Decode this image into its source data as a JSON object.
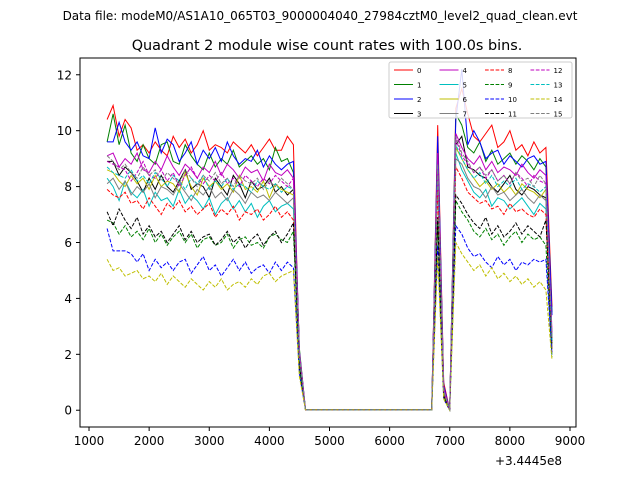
{
  "figure": {
    "suptitle": "Data file: modeM0/AS1A10_065T03_9000004040_27984cztM0_level2_quad_clean.evt"
  },
  "chart_data": {
    "type": "line",
    "title": "Quadrant 2 module wise count rates with 100.0s bins.",
    "xlabel": "",
    "ylabel": "",
    "x_offset_label": "+3.4445e8",
    "xlim": [
      850,
      9100
    ],
    "ylim": [
      -0.6,
      12.6
    ],
    "xticks": [
      1000,
      2000,
      3000,
      4000,
      5000,
      6000,
      7000,
      8000,
      9000
    ],
    "yticks": [
      0,
      2,
      4,
      6,
      8,
      10,
      12
    ],
    "legend_position": "upper-right",
    "legend_columns": 4,
    "grid": false,
    "time_bins": [
      1300,
      1400,
      1500,
      1600,
      1700,
      1800,
      1900,
      2000,
      2100,
      2200,
      2300,
      2400,
      2500,
      2600,
      2700,
      2800,
      2900,
      3000,
      3100,
      3200,
      3300,
      3400,
      3500,
      3600,
      3700,
      3800,
      3900,
      4000,
      4100,
      4200,
      4300,
      4400,
      4500,
      4600,
      6700,
      6800,
      6900,
      7000,
      7100,
      7200,
      7300,
      7400,
      7500,
      7600,
      7700,
      7800,
      7900,
      8000,
      8100,
      8200,
      8300,
      8400,
      8500,
      8600,
      8700
    ],
    "series": [
      {
        "name": "0",
        "color": "#ff0000",
        "dash": "solid",
        "values": [
          10.4,
          10.9,
          9.8,
          10.4,
          10.1,
          9.3,
          9.5,
          9.2,
          9.6,
          9.3,
          9.1,
          9.8,
          9.4,
          9.7,
          9.2,
          9.5,
          10.0,
          9.3,
          9.5,
          9.4,
          9.2,
          9.6,
          9.4,
          9.2,
          9.5,
          9.1,
          9.4,
          9.7,
          9.3,
          9.3,
          9.8,
          9.5,
          2.0,
          0.02,
          0.02,
          10.2,
          1.0,
          0.0,
          10.8,
          11.5,
          10.6,
          9.8,
          9.6,
          9.9,
          10.2,
          9.4,
          9.6,
          10.0,
          9.3,
          9.5,
          9.1,
          9.6,
          9.2,
          9.4,
          3.7
        ]
      },
      {
        "name": "1",
        "color": "#008000",
        "dash": "solid",
        "values": [
          9.6,
          10.6,
          9.5,
          10.2,
          9.2,
          8.9,
          9.5,
          9.0,
          8.8,
          9.5,
          9.6,
          8.9,
          8.8,
          9.5,
          9.1,
          8.8,
          8.6,
          9.2,
          8.7,
          9.0,
          8.8,
          9.3,
          8.7,
          8.9,
          9.1,
          8.8,
          9.0,
          8.6,
          9.4,
          8.9,
          9.0,
          8.5,
          2.2,
          0.02,
          0.02,
          9.6,
          0.8,
          0.0,
          10.6,
          10.2,
          9.4,
          9.2,
          9.6,
          8.9,
          9.3,
          8.8,
          9.0,
          9.2,
          8.8,
          9.1,
          8.9,
          8.6,
          9.0,
          8.7,
          3.5
        ]
      },
      {
        "name": "2",
        "color": "#0000ff",
        "dash": "solid",
        "values": [
          9.6,
          9.6,
          10.3,
          9.6,
          9.3,
          9.6,
          9.1,
          9.0,
          10.1,
          9.2,
          9.7,
          9.5,
          8.9,
          9.2,
          9.6,
          8.8,
          9.3,
          9.0,
          9.4,
          8.9,
          9.6,
          9.1,
          8.8,
          9.0,
          8.9,
          9.3,
          8.7,
          9.1,
          8.8,
          8.6,
          8.8,
          8.9,
          2.1,
          0.02,
          0.02,
          9.8,
          0.9,
          0.0,
          10.4,
          12.2,
          9.5,
          10.0,
          9.6,
          9.0,
          9.2,
          9.3,
          8.8,
          9.1,
          8.9,
          8.7,
          9.0,
          9.1,
          8.8,
          8.9,
          3.4
        ]
      },
      {
        "name": "3",
        "color": "#000000",
        "dash": "solid",
        "values": [
          8.9,
          8.9,
          8.4,
          8.7,
          8.5,
          8.2,
          7.8,
          8.3,
          7.9,
          8.4,
          8.0,
          7.8,
          8.2,
          8.6,
          7.9,
          8.1,
          8.0,
          7.6,
          8.3,
          8.0,
          7.7,
          8.4,
          8.1,
          7.6,
          8.2,
          7.9,
          8.0,
          8.3,
          7.8,
          8.0,
          7.7,
          7.9,
          1.9,
          0.02,
          0.02,
          8.8,
          0.7,
          0.0,
          9.5,
          9.8,
          8.7,
          8.6,
          8.4,
          8.3,
          8.0,
          7.8,
          8.1,
          8.4,
          7.9,
          7.7,
          8.0,
          7.9,
          7.7,
          7.6,
          2.5
        ]
      },
      {
        "name": "4",
        "color": "#bf00bf",
        "dash": "solid",
        "values": [
          9.1,
          9.2,
          8.7,
          9.0,
          8.8,
          9.2,
          8.6,
          8.5,
          8.9,
          8.6,
          9.1,
          8.7,
          8.4,
          8.8,
          8.6,
          8.3,
          8.7,
          8.5,
          8.9,
          8.4,
          8.8,
          8.6,
          8.3,
          8.7,
          8.5,
          8.6,
          8.2,
          8.8,
          8.5,
          8.4,
          8.6,
          8.3,
          2.1,
          0.02,
          0.02,
          9.2,
          0.8,
          0.0,
          9.9,
          9.4,
          9.0,
          8.8,
          9.1,
          8.6,
          8.9,
          8.5,
          8.7,
          8.6,
          8.4,
          8.8,
          8.5,
          8.3,
          8.6,
          8.4,
          2.8
        ]
      },
      {
        "name": "5",
        "color": "#00bfbf",
        "dash": "solid",
        "values": [
          8.3,
          8.0,
          7.5,
          8.2,
          7.8,
          7.6,
          7.9,
          7.3,
          7.8,
          7.5,
          7.6,
          7.3,
          7.9,
          7.4,
          7.7,
          7.5,
          7.2,
          7.6,
          7.0,
          7.4,
          7.6,
          7.2,
          7.5,
          7.1,
          7.4,
          6.9,
          7.3,
          7.5,
          7.1,
          7.3,
          7.4,
          7.2,
          1.8,
          0.02,
          0.02,
          8.4,
          0.6,
          0.0,
          9.2,
          8.6,
          8.2,
          7.8,
          7.6,
          7.9,
          7.3,
          7.6,
          7.5,
          7.2,
          7.4,
          7.6,
          7.3,
          7.0,
          7.4,
          7.2,
          2.2
        ]
      },
      {
        "name": "6",
        "color": "#bfbf00",
        "dash": "solid",
        "values": [
          8.6,
          8.5,
          8.2,
          8.0,
          8.4,
          8.1,
          8.3,
          7.9,
          8.4,
          8.0,
          8.2,
          8.1,
          7.8,
          8.5,
          8.0,
          7.7,
          8.3,
          8.0,
          8.2,
          7.9,
          8.1,
          7.8,
          8.4,
          7.9,
          8.0,
          7.8,
          8.2,
          7.6,
          8.1,
          7.9,
          7.8,
          7.7,
          1.9,
          0.02,
          0.02,
          8.6,
          0.7,
          0.0,
          9.4,
          9.0,
          8.6,
          8.3,
          8.0,
          8.2,
          7.9,
          8.1,
          7.8,
          8.0,
          7.7,
          8.1,
          7.9,
          7.8,
          7.6,
          7.9,
          2.4
        ]
      },
      {
        "name": "7",
        "color": "#808080",
        "dash": "solid",
        "values": [
          8.1,
          8.3,
          7.9,
          8.2,
          7.7,
          8.0,
          7.8,
          8.1,
          7.6,
          8.0,
          7.9,
          7.7,
          8.1,
          7.8,
          7.5,
          7.9,
          7.7,
          8.0,
          7.6,
          7.8,
          7.5,
          7.9,
          7.7,
          7.4,
          7.8,
          7.6,
          7.7,
          7.5,
          7.8,
          7.6,
          7.4,
          7.6,
          1.8,
          0.02,
          0.02,
          8.2,
          0.6,
          0.0,
          9.0,
          8.8,
          8.3,
          8.0,
          7.9,
          7.6,
          8.0,
          7.7,
          7.8,
          7.5,
          7.7,
          7.9,
          7.6,
          7.4,
          7.7,
          7.5,
          2.3
        ]
      },
      {
        "name": "8",
        "color": "#ff0000",
        "dash": "dashed",
        "values": [
          7.9,
          7.7,
          7.6,
          7.8,
          7.4,
          7.5,
          7.2,
          7.6,
          7.3,
          7.0,
          7.4,
          7.2,
          7.5,
          7.1,
          7.3,
          7.0,
          7.2,
          7.4,
          6.9,
          7.2,
          7.0,
          7.3,
          6.8,
          7.1,
          7.0,
          7.2,
          6.8,
          7.0,
          7.3,
          6.9,
          7.1,
          6.8,
          1.7,
          0.02,
          0.02,
          7.9,
          0.6,
          0.0,
          8.7,
          8.3,
          7.8,
          7.6,
          7.4,
          7.5,
          7.2,
          7.3,
          7.0,
          7.4,
          7.1,
          7.2,
          7.0,
          6.9,
          7.2,
          7.0,
          2.1
        ]
      },
      {
        "name": "9",
        "color": "#008000",
        "dash": "dashed",
        "values": [
          6.8,
          6.7,
          6.3,
          6.6,
          6.2,
          6.4,
          6.1,
          6.5,
          6.0,
          6.3,
          5.9,
          6.2,
          6.4,
          6.0,
          6.3,
          5.8,
          6.1,
          6.2,
          5.9,
          6.0,
          6.3,
          5.8,
          6.1,
          6.2,
          5.9,
          6.0,
          5.8,
          6.2,
          6.3,
          6.1,
          6.0,
          6.4,
          1.5,
          0.02,
          0.02,
          6.7,
          0.5,
          0.0,
          7.5,
          7.1,
          6.8,
          6.4,
          6.2,
          6.5,
          6.1,
          6.3,
          5.9,
          6.2,
          6.4,
          6.0,
          6.3,
          6.1,
          6.2,
          5.9,
          1.9
        ]
      },
      {
        "name": "10",
        "color": "#0000ff",
        "dash": "dashed",
        "values": [
          6.5,
          5.7,
          5.7,
          5.7,
          5.6,
          5.3,
          5.6,
          5.0,
          5.4,
          5.1,
          5.3,
          5.0,
          5.3,
          5.4,
          4.9,
          5.2,
          5.5,
          5.0,
          5.2,
          4.8,
          5.1,
          5.4,
          5.0,
          5.3,
          4.9,
          5.1,
          5.2,
          4.9,
          5.3,
          5.0,
          5.3,
          5.1,
          1.3,
          0.02,
          0.02,
          5.9,
          0.4,
          0.0,
          6.6,
          6.3,
          5.8,
          5.5,
          5.6,
          5.3,
          5.1,
          5.5,
          5.2,
          5.4,
          5.0,
          5.3,
          5.2,
          5.4,
          5.3,
          5.4,
          2.0
        ]
      },
      {
        "name": "11",
        "color": "#000000",
        "dash": "dashed",
        "values": [
          7.1,
          6.6,
          7.2,
          6.8,
          6.5,
          6.9,
          6.3,
          6.6,
          6.2,
          6.4,
          6.0,
          6.3,
          6.6,
          6.1,
          6.4,
          6.0,
          6.2,
          6.3,
          5.9,
          6.1,
          6.4,
          6.0,
          6.2,
          5.8,
          6.1,
          6.3,
          5.9,
          6.2,
          6.4,
          6.0,
          6.3,
          6.7,
          1.6,
          0.02,
          0.02,
          6.9,
          0.5,
          0.0,
          7.7,
          7.4,
          7.0,
          6.7,
          6.5,
          6.9,
          6.3,
          6.6,
          6.2,
          6.4,
          6.7,
          6.3,
          6.6,
          6.4,
          6.2,
          6.8,
          2.4
        ]
      },
      {
        "name": "12",
        "color": "#bf00bf",
        "dash": "dashed",
        "values": [
          8.9,
          8.8,
          8.7,
          8.6,
          8.2,
          8.5,
          8.9,
          8.4,
          8.3,
          8.6,
          8.2,
          8.5,
          8.0,
          8.4,
          8.7,
          8.3,
          8.1,
          8.4,
          8.2,
          8.5,
          8.1,
          8.3,
          8.0,
          8.4,
          8.2,
          8.0,
          8.3,
          8.1,
          8.4,
          8.2,
          8.0,
          8.3,
          2.0,
          0.02,
          0.02,
          8.9,
          0.7,
          0.0,
          9.7,
          9.1,
          8.8,
          8.5,
          8.7,
          8.3,
          8.6,
          8.2,
          8.4,
          8.1,
          8.5,
          8.3,
          8.0,
          8.4,
          8.2,
          8.1,
          2.6
        ]
      },
      {
        "name": "13",
        "color": "#00bfbf",
        "dash": "dashed",
        "values": [
          8.7,
          8.5,
          8.4,
          8.3,
          8.6,
          8.2,
          8.4,
          8.1,
          8.5,
          8.3,
          8.0,
          8.4,
          8.2,
          7.9,
          8.3,
          8.1,
          8.4,
          7.9,
          8.2,
          8.0,
          8.3,
          7.9,
          8.1,
          8.0,
          7.8,
          8.2,
          8.0,
          7.9,
          8.1,
          7.8,
          8.0,
          7.9,
          1.9,
          0.02,
          0.02,
          8.7,
          0.7,
          0.0,
          9.5,
          9.0,
          8.6,
          8.3,
          8.5,
          8.1,
          8.4,
          8.0,
          8.2,
          8.0,
          8.3,
          7.9,
          8.1,
          8.0,
          7.8,
          8.0,
          2.5
        ]
      },
      {
        "name": "14",
        "color": "#bfbf00",
        "dash": "dashed",
        "values": [
          5.4,
          5.0,
          5.1,
          4.8,
          4.9,
          5.0,
          4.7,
          4.8,
          4.6,
          4.9,
          4.5,
          4.8,
          4.6,
          4.4,
          4.7,
          4.5,
          4.3,
          4.6,
          4.4,
          4.7,
          4.3,
          4.5,
          4.6,
          4.4,
          4.7,
          4.5,
          4.8,
          4.9,
          4.6,
          4.8,
          4.9,
          5.0,
          1.2,
          0.02,
          0.02,
          5.5,
          0.4,
          0.0,
          6.0,
          5.6,
          5.3,
          5.0,
          5.2,
          4.8,
          5.1,
          4.7,
          4.9,
          4.6,
          4.8,
          4.5,
          4.7,
          4.4,
          4.6,
          4.3,
          1.8
        ]
      },
      {
        "name": "15",
        "color": "#808080",
        "dash": "dashed",
        "values": [
          9.1,
          8.9,
          8.6,
          8.8,
          8.5,
          8.3,
          8.7,
          8.4,
          8.6,
          8.2,
          8.5,
          8.3,
          8.1,
          8.6,
          8.3,
          8.0,
          8.4,
          8.2,
          8.5,
          8.1,
          8.3,
          8.0,
          8.4,
          8.2,
          8.1,
          8.3,
          7.9,
          8.2,
          8.0,
          8.3,
          8.1,
          7.9,
          2.0,
          0.02,
          0.02,
          8.8,
          0.7,
          0.0,
          9.8,
          9.2,
          8.9,
          8.5,
          8.7,
          8.4,
          8.6,
          8.2,
          8.4,
          8.1,
          8.5,
          8.2,
          8.3,
          8.0,
          8.4,
          8.1,
          2.6
        ]
      }
    ]
  }
}
